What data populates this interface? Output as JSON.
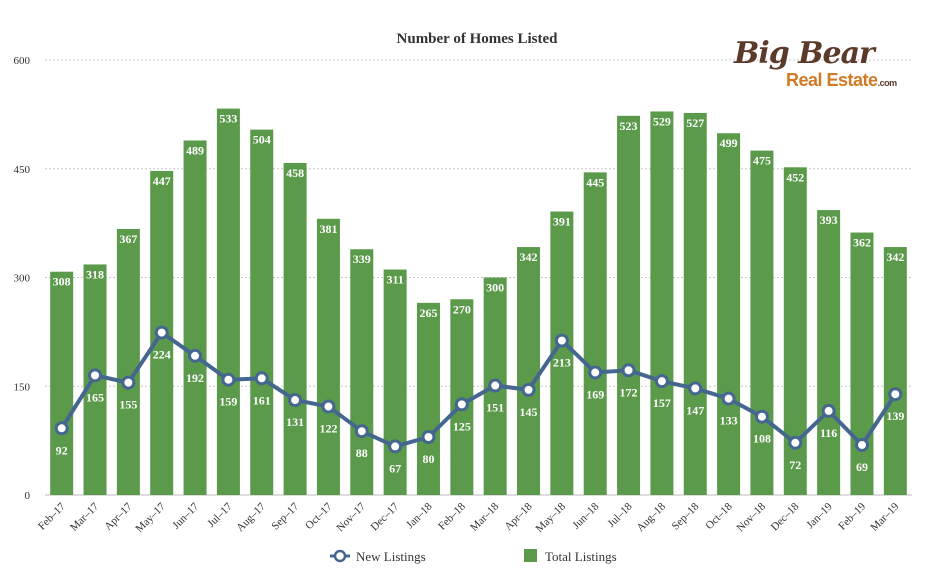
{
  "logo": {
    "line1": "Big Bear",
    "line2": "Real Estate",
    "suffix": ".com"
  },
  "colors": {
    "bar": "#5b9a4b",
    "line": "#44668f",
    "grid": "#c8c8c8",
    "text": "#333333",
    "label": "#ffffff"
  },
  "chart_data": {
    "type": "bar",
    "title": "Number of Homes Listed",
    "xlabel": "",
    "ylabel": "",
    "ylim": [
      0,
      600
    ],
    "yticks": [
      0,
      150,
      300,
      450,
      600
    ],
    "grid": true,
    "legend_position": "bottom",
    "categories": [
      "Feb–17",
      "Mar–17",
      "Apr–17",
      "May–17",
      "Jun–17",
      "Jul–17",
      "Aug–17",
      "Sep–17",
      "Oct–17",
      "Nov–17",
      "Dec–17",
      "Jan–18",
      "Feb–18",
      "Mar–18",
      "Apr–18",
      "May–18",
      "Jun–18",
      "Jul–18",
      "Aug–18",
      "Sep–18",
      "Oct–18",
      "Nov–18",
      "Dec–18",
      "Jan–19",
      "Feb–19",
      "Mar–19"
    ],
    "series": [
      {
        "name": "New Listings",
        "type": "line",
        "values": [
          92,
          165,
          155,
          224,
          192,
          159,
          161,
          131,
          122,
          88,
          67,
          80,
          125,
          151,
          145,
          213,
          169,
          172,
          157,
          147,
          133,
          108,
          72,
          116,
          69,
          139
        ]
      },
      {
        "name": "Total Listings",
        "type": "bar",
        "values": [
          308,
          318,
          367,
          447,
          489,
          533,
          504,
          458,
          381,
          339,
          311,
          265,
          270,
          300,
          342,
          391,
          445,
          523,
          529,
          527,
          499,
          475,
          452,
          393,
          362,
          342
        ]
      }
    ]
  }
}
